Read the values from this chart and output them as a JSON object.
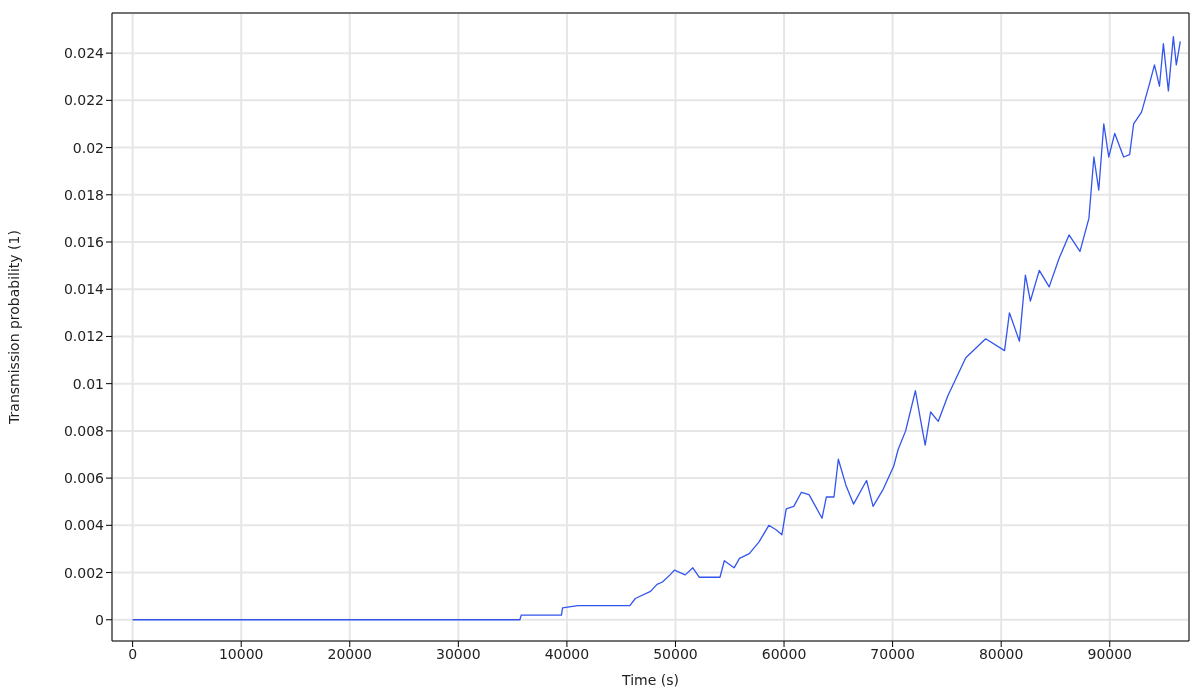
{
  "chart_data": {
    "type": "line",
    "xlabel": "Time (s)",
    "ylabel": "Transmission probability (1)",
    "xlim": [
      -1900,
      97300
    ],
    "ylim": [
      -0.0009,
      0.0257
    ],
    "xticks": [
      0,
      10000,
      20000,
      30000,
      40000,
      50000,
      60000,
      70000,
      80000,
      90000
    ],
    "yticks": [
      0,
      0.002,
      0.004,
      0.006,
      0.008,
      0.01,
      0.012,
      0.014,
      0.016,
      0.018,
      0.02,
      0.022,
      0.024
    ],
    "grid": true,
    "marker": "none",
    "line_style": "solid",
    "series": [
      {
        "color": "#3355ee",
        "x": [
          0,
          35670,
          35800,
          37000,
          39500,
          39600,
          41000,
          45800,
          46300,
          47700,
          48300,
          48800,
          49500,
          49900,
          50900,
          51600,
          52200,
          54100,
          54500,
          55400,
          55900,
          56800,
          57700,
          58600,
          59300,
          59800,
          60200,
          60900,
          61600,
          62300,
          62900,
          63500,
          63900,
          64600,
          65000,
          65700,
          66400,
          67600,
          68200,
          69100,
          70100,
          70500,
          71200,
          72100,
          72600,
          73000,
          73500,
          74200,
          75100,
          76740,
          78570,
          80310,
          80760,
          81680,
          82230,
          82690,
          83510,
          84420,
          85330,
          86250,
          87260,
          88080,
          88540,
          88990,
          89450,
          89910,
          90460,
          91280,
          91830,
          92200,
          92930,
          93660,
          94120,
          94580,
          94940,
          95400,
          95860,
          96130,
          96500
        ],
        "values": [
          0,
          0,
          0.0002,
          0.0002,
          0.0002,
          0.0005,
          0.0006,
          0.0006,
          0.0009,
          0.0012,
          0.0015,
          0.0016,
          0.0019,
          0.0021,
          0.0019,
          0.0022,
          0.0018,
          0.0018,
          0.0025,
          0.0022,
          0.0026,
          0.0028,
          0.0033,
          0.004,
          0.0038,
          0.0036,
          0.0047,
          0.0048,
          0.0054,
          0.0053,
          0.0048,
          0.0043,
          0.0052,
          0.0052,
          0.0068,
          0.0057,
          0.0049,
          0.0059,
          0.0048,
          0.0055,
          0.0065,
          0.0072,
          0.008,
          0.0097,
          0.0084,
          0.0074,
          0.0088,
          0.0084,
          0.0095,
          0.0111,
          0.0119,
          0.0114,
          0.013,
          0.0118,
          0.0146,
          0.0135,
          0.0148,
          0.0141,
          0.0153,
          0.0163,
          0.0156,
          0.017,
          0.0196,
          0.0182,
          0.021,
          0.0196,
          0.0206,
          0.0196,
          0.0197,
          0.021,
          0.0215,
          0.0227,
          0.0235,
          0.0226,
          0.0244,
          0.0224,
          0.0247,
          0.0235,
          0.0245
        ]
      }
    ]
  }
}
